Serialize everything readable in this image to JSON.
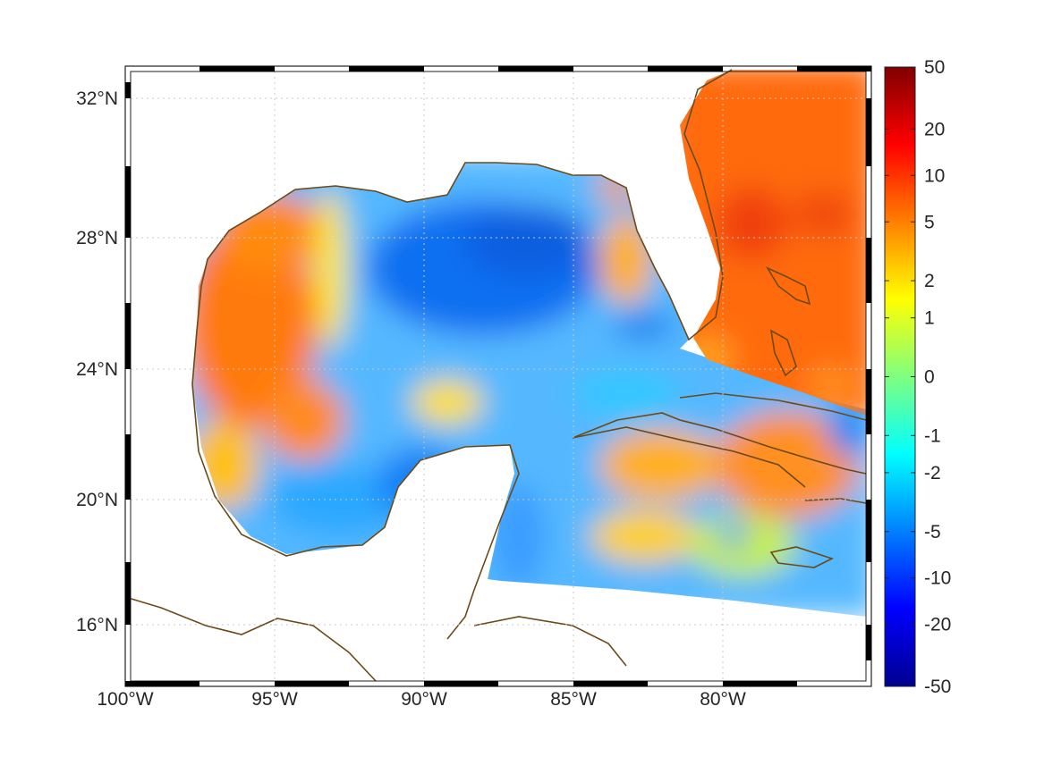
{
  "map": {
    "extent": {
      "lon_min": -100,
      "lon_max": -75,
      "lat_min": 14,
      "lat_max": 33
    },
    "lon_ticks": [
      {
        "value": -100,
        "label": "100°W"
      },
      {
        "value": -95,
        "label": "95°W"
      },
      {
        "value": -90,
        "label": "90°W"
      },
      {
        "value": -85,
        "label": "85°W"
      },
      {
        "value": -80,
        "label": "80°W"
      }
    ],
    "lat_ticks": [
      {
        "value": 32,
        "label": "32°N"
      },
      {
        "value": 28,
        "label": "28°N"
      },
      {
        "value": 24,
        "label": "24°N"
      },
      {
        "value": 20,
        "label": "20°N"
      },
      {
        "value": 16,
        "label": "16°N"
      }
    ],
    "grid": true,
    "coastline_color": "#6b4a1a",
    "data_field": {
      "gulf_east": "blue (-5 to -2)",
      "gulf_west": "orange (5 to 10)",
      "atlantic": "orange (5 to 10)",
      "caribbean": "mixed cyan/yellow"
    }
  },
  "colorbar": {
    "colormap": "jet",
    "scale": "symmetric non-linear",
    "labels": [
      "50",
      "20",
      "10",
      "5",
      "2",
      "1",
      "0",
      "-1",
      "-2",
      "-5",
      "-10",
      "-20",
      "-50"
    ],
    "label_positions": [
      0,
      0.1,
      0.175,
      0.25,
      0.345,
      0.405,
      0.5,
      0.595,
      0.655,
      0.75,
      0.825,
      0.9,
      1
    ]
  }
}
